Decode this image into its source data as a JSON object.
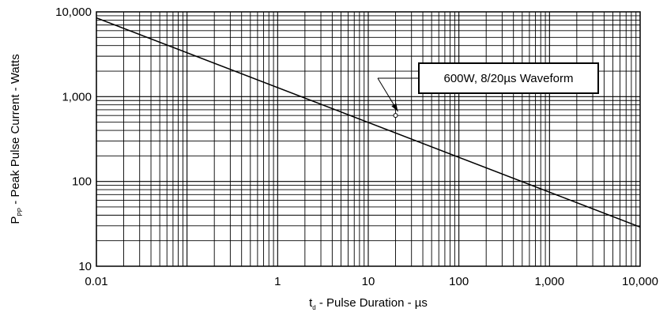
{
  "chart_data": {
    "type": "line",
    "x_scale": "log",
    "y_scale": "log",
    "xlim": [
      0.01,
      10000
    ],
    "ylim": [
      10,
      10000
    ],
    "grid": true,
    "x_ticks": [
      {
        "value": 0.01,
        "label": "0.01"
      },
      {
        "value": 1,
        "label": "1"
      },
      {
        "value": 10,
        "label": "10"
      },
      {
        "value": 100,
        "label": "100"
      },
      {
        "value": 1000,
        "label": "1,000"
      },
      {
        "value": 10000,
        "label": "10,000"
      }
    ],
    "y_ticks": [
      {
        "value": 10,
        "label": "10"
      },
      {
        "value": 100,
        "label": "100"
      },
      {
        "value": 1000,
        "label": "1,000"
      },
      {
        "value": 10000,
        "label": "10,000"
      }
    ],
    "xlabel": {
      "main": "t",
      "sub": "d",
      "rest": " - Pulse Duration - µs"
    },
    "ylabel": {
      "main": "P",
      "sub": "PP",
      "rest": " - Peak Pulse Current - Watts"
    },
    "series": [
      {
        "points": [
          [
            0.01,
            8500
          ],
          [
            10000,
            29
          ]
        ]
      }
    ],
    "marker": {
      "x": 20,
      "y": 600
    },
    "annotation": {
      "text": "600W, 8/20µs Waveform"
    }
  },
  "colors": {
    "line": "#000000",
    "grid": "#000000",
    "background": "#ffffff"
  }
}
